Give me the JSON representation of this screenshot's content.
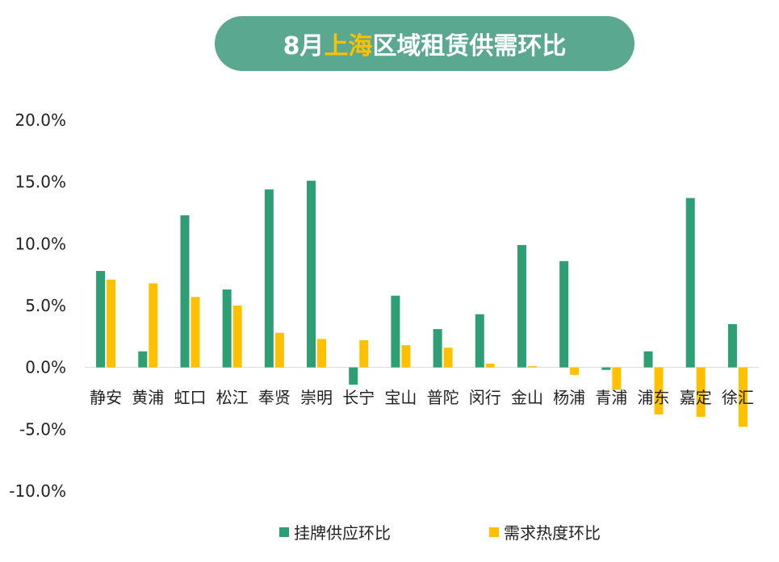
{
  "title": {
    "prefix": "8月",
    "highlight": "上海",
    "suffix": "区域租赁供需环比"
  },
  "colors": {
    "title_bg": "#5aa88f",
    "highlight": "#ffc000",
    "supply": "#2e9e74",
    "demand": "#ffc000"
  },
  "chart_data": {
    "type": "bar",
    "categories": [
      "静安",
      "黄浦",
      "虹口",
      "松江",
      "奉贤",
      "崇明",
      "长宁",
      "宝山",
      "普陀",
      "闵行",
      "金山",
      "杨浦",
      "青浦",
      "浦东",
      "嘉定",
      "徐汇"
    ],
    "series": [
      {
        "name": "挂牌供应环比",
        "values": [
          7.8,
          1.3,
          12.3,
          6.3,
          14.4,
          15.1,
          -1.4,
          5.8,
          3.1,
          4.3,
          9.9,
          8.6,
          -0.2,
          1.3,
          13.7,
          3.5
        ]
      },
      {
        "name": "需求热度环比",
        "values": [
          7.1,
          6.8,
          5.7,
          5.0,
          2.8,
          2.3,
          2.2,
          1.8,
          1.6,
          0.3,
          0.1,
          -0.6,
          -1.8,
          -3.8,
          -4.0,
          -4.8
        ]
      }
    ],
    "ylim": [
      -10,
      20
    ],
    "yticks": [
      "20.0%",
      "15.0%",
      "10.0%",
      "5.0%",
      "0.0%",
      "-5.0%",
      "-10.0%"
    ],
    "ytick_values": [
      20,
      15,
      10,
      5,
      0,
      -5,
      -10
    ],
    "legend_position": "bottom"
  }
}
